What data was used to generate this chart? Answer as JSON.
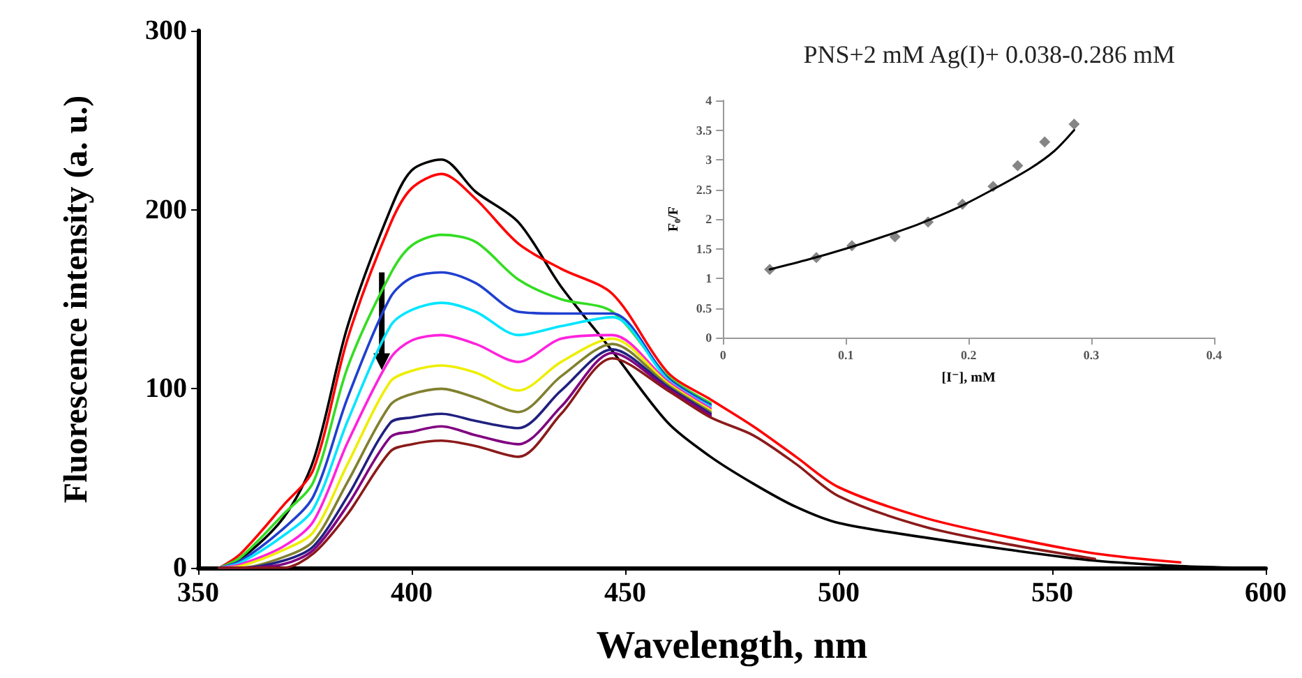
{
  "chart_data": [
    {
      "type": "line",
      "xlabel": "Wavelength, nm",
      "ylabel": "Fluorescence intensity (a. u.)",
      "annotations": [
        "PNS+2 mM Ag(I)+ 0.038-0.286 mM"
      ],
      "xlim": [
        350,
        600
      ],
      "xticks": [
        350,
        400,
        450,
        500,
        550,
        600
      ],
      "ylim": [
        0,
        300
      ],
      "yticks": [
        0,
        100,
        200,
        300
      ],
      "grid": false,
      "marker": "none",
      "line_style": "solid",
      "x": [
        355,
        360,
        370,
        377,
        385,
        395,
        400,
        407,
        415,
        425,
        435,
        447,
        460,
        470,
        480,
        490,
        500,
        520,
        540,
        560,
        580,
        595
      ],
      "series": [
        {
          "color": "#000000",
          "values": [
            0,
            5,
            28,
            60,
            135,
            200,
            222,
            228,
            210,
            193,
            157,
            121,
            81,
            62,
            47,
            34,
            25,
            17,
            10,
            4,
            1,
            0
          ]
        },
        {
          "color": "#ff0000",
          "values": [
            0,
            8,
            35,
            55,
            128,
            192,
            212,
            220,
            206,
            181,
            167,
            153,
            109,
            94,
            79,
            62,
            45,
            28,
            17,
            8,
            3,
            null
          ]
        },
        {
          "color": "#33dd22",
          "values": [
            0,
            6,
            30,
            48,
            112,
            164,
            180,
            186,
            182,
            161,
            150,
            143,
            107,
            92,
            null,
            null,
            null,
            null,
            null,
            null,
            null,
            null
          ]
        },
        {
          "color": "#1f3fd0",
          "values": [
            0,
            4,
            22,
            40,
            95,
            151,
            162,
            165,
            159,
            143,
            142,
            142,
            106,
            91,
            null,
            null,
            null,
            null,
            null,
            null,
            null,
            null
          ]
        },
        {
          "color": "#00e5ff",
          "values": [
            0,
            3,
            18,
            33,
            82,
            135,
            144,
            148,
            143,
            130,
            135,
            140,
            105,
            90,
            null,
            null,
            null,
            null,
            null,
            null,
            null,
            null
          ]
        },
        {
          "color": "#ff22dd",
          "values": [
            0,
            2,
            12,
            26,
            70,
            117,
            127,
            130,
            125,
            115,
            128,
            130,
            104,
            89,
            null,
            null,
            null,
            null,
            null,
            null,
            null,
            null
          ]
        },
        {
          "color": "#eeee00",
          "values": [
            0,
            1,
            10,
            20,
            58,
            104,
            110,
            113,
            109,
            99,
            115,
            128,
            103,
            88,
            null,
            null,
            null,
            null,
            null,
            null,
            null,
            null
          ]
        },
        {
          "color": "#808030",
          "values": [
            0,
            0,
            6,
            15,
            48,
            91,
            97,
            100,
            95,
            87,
            107,
            125,
            102,
            87,
            null,
            null,
            null,
            null,
            null,
            null,
            null,
            null
          ]
        },
        {
          "color": "#202080",
          "values": [
            0,
            0,
            4,
            12,
            40,
            81,
            84,
            86,
            82,
            78,
            99,
            122,
            101,
            86,
            null,
            null,
            null,
            null,
            null,
            null,
            null,
            null
          ]
        },
        {
          "color": "#800080",
          "values": [
            0,
            0,
            2,
            10,
            35,
            73,
            76,
            79,
            74,
            69,
            90,
            120,
            100,
            85,
            null,
            null,
            null,
            null,
            null,
            null,
            null,
            null
          ]
        },
        {
          "color": "#8b1a1a",
          "values": [
            0,
            0,
            0,
            8,
            30,
            65,
            69,
            71,
            68,
            62,
            86,
            117,
            99,
            84,
            74,
            58,
            40,
            23,
            13,
            5,
            null,
            null
          ]
        }
      ]
    },
    {
      "type": "scatter",
      "xlabel": "[I⁻], mM",
      "ylabel": "F₀/F",
      "xlim": [
        0,
        0.4
      ],
      "xticks": [
        0,
        0.1,
        0.2,
        0.3,
        0.4
      ],
      "ylim": [
        0,
        4
      ],
      "yticks": [
        0,
        0.5,
        1,
        1.5,
        2,
        2.5,
        3,
        3.5,
        4
      ],
      "grid": false,
      "series": [
        {
          "marker": "diamond",
          "color": "#666666",
          "x": [
            0.038,
            0.076,
            0.105,
            0.14,
            0.167,
            0.195,
            0.22,
            0.24,
            0.262,
            0.286
          ],
          "values": [
            1.15,
            1.35,
            1.55,
            1.7,
            1.95,
            2.25,
            2.55,
            2.9,
            3.3,
            3.6
          ]
        },
        {
          "type": "line",
          "marker": "none",
          "color": "#000000",
          "x": [
            0.038,
            0.07,
            0.1,
            0.13,
            0.16,
            0.19,
            0.22,
            0.25,
            0.27,
            0.286
          ],
          "values": [
            1.15,
            1.32,
            1.5,
            1.7,
            1.92,
            2.18,
            2.5,
            2.85,
            3.15,
            3.5
          ]
        }
      ]
    }
  ]
}
